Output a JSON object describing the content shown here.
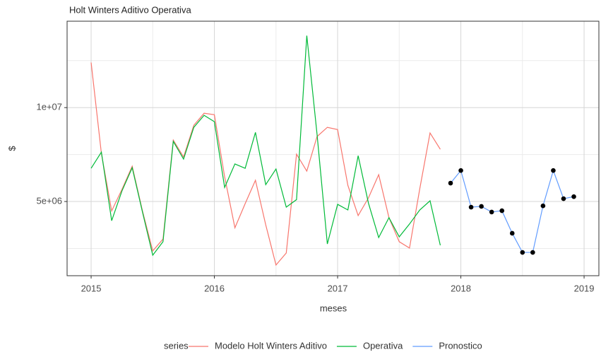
{
  "chart_data": {
    "type": "line",
    "title": "Holt Winters Aditivo Operativa",
    "x_label": "meses",
    "y_label": "$",
    "legend_title": "series",
    "legend_position": "bottom",
    "grid": true,
    "xlim": [
      2014.805,
      2019.12
    ],
    "ylim": [
      1050000,
      14600000
    ],
    "xticks": [
      2015,
      2016,
      2017,
      2018,
      2019
    ],
    "xminor": [
      2015.5,
      2016.5,
      2017.5,
      2018.5
    ],
    "yticks": [
      {
        "value": 5000000,
        "label": "5e+06"
      },
      {
        "value": 10000000,
        "label": "1e+07"
      }
    ],
    "yminor": [
      2500000,
      7500000,
      12500000
    ],
    "series": [
      {
        "name": "Modelo Holt Winters Aditivo",
        "color": "#F8766D",
        "x": [
          2015,
          2015.0833,
          2015.1667,
          2015.25,
          2015.3333,
          2015.4167,
          2015.5,
          2015.5833,
          2015.6667,
          2015.75,
          2015.8333,
          2015.9167,
          2016,
          2016.0833,
          2016.1667,
          2016.25,
          2016.3333,
          2016.4167,
          2016.5,
          2016.5833,
          2016.6667,
          2016.75,
          2016.8333,
          2016.9167,
          2017,
          2017.0833,
          2017.1667,
          2017.25,
          2017.3333,
          2017.4167,
          2017.5,
          2017.5833,
          2017.6667,
          2017.75,
          2017.8333
        ],
        "values": [
          12400000,
          7560000,
          4500000,
          5640000,
          6880000,
          4500000,
          2370000,
          3000000,
          8270000,
          7370000,
          9060000,
          9700000,
          9620000,
          6320000,
          3600000,
          4890000,
          6130000,
          3760000,
          1620000,
          2260000,
          7520000,
          6620000,
          8460000,
          8950000,
          8830000,
          5860000,
          4250000,
          5190000,
          6430000,
          4140000,
          2860000,
          2520000,
          5680000,
          8650000,
          7780000
        ]
      },
      {
        "name": "Operativa",
        "color": "#00BA38",
        "x": [
          2015,
          2015.0833,
          2015.1667,
          2015.25,
          2015.3333,
          2015.4167,
          2015.5,
          2015.5833,
          2015.6667,
          2015.75,
          2015.8333,
          2015.9167,
          2016,
          2016.0833,
          2016.1667,
          2016.25,
          2016.3333,
          2016.4167,
          2016.5,
          2016.5833,
          2016.6667,
          2016.75,
          2016.8333,
          2016.9167,
          2017,
          2017.0833,
          2017.1667,
          2017.25,
          2017.3333,
          2017.4167,
          2017.5,
          2017.5833,
          2017.6667,
          2017.75,
          2017.8333
        ],
        "values": [
          6770000,
          7630000,
          3980000,
          5560000,
          6800000,
          4440000,
          2140000,
          2860000,
          8200000,
          7260000,
          8950000,
          9590000,
          9250000,
          5750000,
          7000000,
          6770000,
          8680000,
          5900000,
          6730000,
          4700000,
          5100000,
          13830000,
          8570000,
          2740000,
          4850000,
          4550000,
          7440000,
          4920000,
          3080000,
          4140000,
          3120000,
          3800000,
          4550000,
          5040000,
          2670000
        ]
      },
      {
        "name": "Pronostico",
        "color": "#619CFF",
        "marker_color": "#000000",
        "x": [
          2017.9167,
          2018,
          2018.0833,
          2018.1667,
          2018.25,
          2018.3333,
          2018.4167,
          2018.5,
          2018.5833,
          2018.6667,
          2018.75,
          2018.8333,
          2018.9167
        ],
        "values": [
          5980000,
          6650000,
          4700000,
          4740000,
          4440000,
          4510000,
          3310000,
          2290000,
          2290000,
          4770000,
          6650000,
          5150000,
          5260000
        ]
      }
    ]
  }
}
